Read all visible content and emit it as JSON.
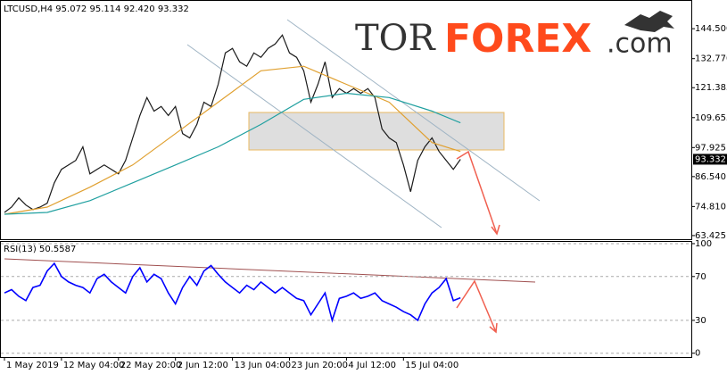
{
  "chart_data": [
    {
      "type": "line",
      "title": "LTCUSD,H4  95.072 95.114 92.420 93.332",
      "xlim": [
        -0.5,
        96.4
      ],
      "ylim": [
        62.0,
        155.4
      ],
      "yticks": [
        {
          "value": 144.5,
          "label": "144.500"
        },
        {
          "value": 132.77,
          "label": "132.770"
        },
        {
          "value": 121.385,
          "label": "121.385"
        },
        {
          "value": 109.655,
          "label": "109.655"
        },
        {
          "value": 97.925,
          "label": "97.925"
        },
        {
          "value": 86.54,
          "label": "86.540"
        },
        {
          "value": 74.81,
          "label": "74.810"
        },
        {
          "value": 63.425,
          "label": "63.425"
        }
      ],
      "last_price": {
        "value": 93.332,
        "label": "93.332"
      },
      "series": [
        {
          "color": "#1a1a1a",
          "x": [
            0,
            1,
            2,
            3,
            4,
            5,
            6,
            7,
            8,
            9,
            10,
            11,
            12,
            13,
            14,
            15,
            16,
            17,
            18,
            19,
            20,
            21,
            22,
            23,
            24,
            25,
            26,
            27,
            28,
            29,
            30,
            31,
            32,
            33,
            34,
            35,
            36,
            37,
            38,
            39,
            40,
            41,
            42,
            43,
            44,
            45,
            46,
            47,
            48,
            49,
            50,
            51,
            52,
            53,
            54,
            55,
            56,
            57,
            58,
            59,
            60,
            61,
            62,
            63,
            64
          ],
          "values": [
            72.5,
            74.6,
            78.2,
            75.4,
            73.6,
            74.6,
            76.1,
            84.1,
            89.4,
            91.1,
            92.9,
            98.2,
            87.6,
            89.4,
            91.1,
            89.4,
            87.6,
            92.9,
            101.7,
            110.5,
            117.5,
            112.2,
            114.0,
            110.5,
            114.0,
            103.4,
            101.7,
            107.0,
            115.7,
            114.0,
            122.7,
            135.0,
            136.8,
            131.5,
            129.8,
            135.0,
            133.3,
            136.8,
            138.5,
            142.0,
            135.0,
            133.3,
            128.0,
            115.7,
            122.7,
            131.5,
            117.5,
            121.0,
            119.2,
            121.0,
            119.2,
            121.0,
            117.5,
            105.2,
            101.7,
            99.9,
            91.1,
            80.6,
            92.9,
            98.2,
            101.7,
            96.4,
            92.9,
            89.4,
            93.3
          ]
        },
        {
          "color": "#e0a030",
          "x": [
            0,
            6,
            12,
            18,
            24,
            30,
            36,
            42,
            48,
            54,
            60,
            64
          ],
          "values": [
            71.8,
            74.6,
            82.4,
            91.1,
            103.4,
            115.7,
            128.0,
            129.8,
            122.7,
            115.7,
            99.9,
            96.4
          ]
        },
        {
          "color": "#20a0a0",
          "x": [
            0,
            6,
            12,
            18,
            24,
            30,
            36,
            42,
            48,
            54,
            60,
            64
          ],
          "values": [
            71.8,
            72.5,
            77.1,
            84.1,
            91.1,
            98.2,
            107.0,
            116.8,
            119.2,
            117.5,
            112.2,
            107.6
          ]
        }
      ]
    },
    {
      "type": "line",
      "title": "RSI(13) 50.5587",
      "xlim": [
        -0.5,
        96.4
      ],
      "ylim": [
        -3.5,
        101.6
      ],
      "yticks": [
        100,
        70,
        30,
        0
      ],
      "xticks": [
        {
          "value": 0,
          "label": "1 May 2019"
        },
        {
          "value": 8,
          "label": "12 May 04:00"
        },
        {
          "value": 16,
          "label": "22 May 20:00"
        },
        {
          "value": 24,
          "label": "2 Jun 12:00"
        },
        {
          "value": 32,
          "label": "13 Jun 04:00"
        },
        {
          "value": 40,
          "label": "23 Jun 20:00"
        },
        {
          "value": 48,
          "label": "4 Jul 12:00"
        },
        {
          "value": 56,
          "label": "15 Jul 04:00"
        }
      ],
      "series": [
        {
          "color": "#0000ff",
          "x": [
            0,
            1,
            2,
            3,
            4,
            5,
            6,
            7,
            8,
            9,
            10,
            11,
            12,
            13,
            14,
            15,
            16,
            17,
            18,
            19,
            20,
            21,
            22,
            23,
            24,
            25,
            26,
            27,
            28,
            29,
            30,
            31,
            32,
            33,
            34,
            35,
            36,
            37,
            38,
            39,
            40,
            41,
            42,
            43,
            44,
            45,
            46,
            47,
            48,
            49,
            50,
            51,
            52,
            53,
            54,
            55,
            56,
            57,
            58,
            59,
            60,
            61,
            62,
            63,
            64
          ],
          "values": [
            55,
            58,
            52,
            48,
            60,
            62,
            75,
            82,
            70,
            65,
            62,
            60,
            55,
            68,
            72,
            65,
            60,
            55,
            70,
            78,
            65,
            72,
            68,
            55,
            45,
            60,
            70,
            62,
            75,
            80,
            72,
            65,
            60,
            55,
            62,
            58,
            65,
            60,
            55,
            60,
            55,
            50,
            48,
            35,
            45,
            55,
            30,
            50,
            52,
            55,
            50,
            52,
            55,
            48,
            45,
            42,
            38,
            35,
            30,
            45,
            55,
            60,
            68,
            48,
            50.5587
          ]
        }
      ]
    }
  ],
  "watermark": {
    "parts": [
      "TOR",
      "FOREX",
      ".com"
    ]
  }
}
